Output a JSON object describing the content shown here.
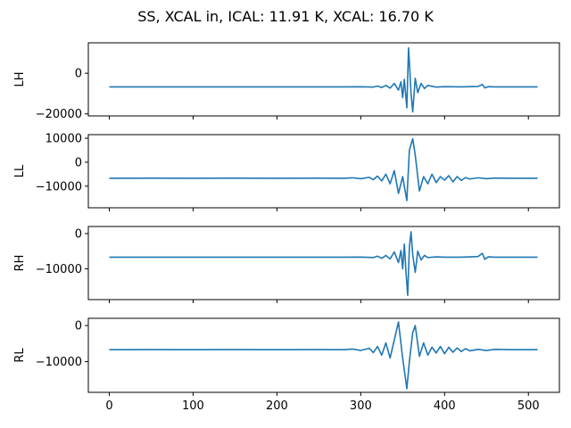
{
  "figure": {
    "title": "SS, XCAL in, ICAL: 11.91 K, XCAL: 16.70 K"
  },
  "chart_data": [
    {
      "type": "line",
      "ylabel": "LH",
      "xlim": [
        -25,
        537
      ],
      "ylim": [
        -21000,
        15000
      ],
      "yticks": [
        -20000,
        0
      ],
      "ytick_labels": [
        "−20000",
        "0"
      ],
      "xticks": [
        0,
        100,
        200,
        300,
        400,
        500
      ],
      "xtick_labels": [
        "",
        "",
        "",
        "",
        "",
        ""
      ],
      "series": [
        {
          "color": "#1f77b4",
          "x": [
            0,
            100,
            200,
            280,
            300,
            315,
            320,
            325,
            330,
            335,
            340,
            345,
            348,
            350,
            352,
            355,
            357,
            358,
            360,
            362,
            365,
            368,
            372,
            376,
            380,
            390,
            400,
            420,
            440,
            445,
            448,
            452,
            460,
            480,
            511
          ],
          "y": [
            -6700,
            -6700,
            -6700,
            -6700,
            -6650,
            -6800,
            -6300,
            -7000,
            -6000,
            -7300,
            -5000,
            -8300,
            -4200,
            -12000,
            -3000,
            -17000,
            12500,
            6000,
            -10000,
            -19000,
            -2500,
            -9500,
            -5000,
            -7500,
            -6000,
            -6800,
            -6600,
            -6700,
            -6500,
            -5500,
            -7200,
            -6600,
            -6700,
            -6700,
            -6700
          ]
        }
      ]
    },
    {
      "type": "line",
      "ylabel": "LL",
      "xlim": [
        -25,
        537
      ],
      "ylim": [
        -19000,
        11500
      ],
      "yticks": [
        -10000,
        0,
        10000
      ],
      "ytick_labels": [
        "−10000",
        "0",
        "10000"
      ],
      "xticks": [
        0,
        100,
        200,
        300,
        400,
        500
      ],
      "xtick_labels": [
        "",
        "",
        "",
        "",
        "",
        ""
      ],
      "series": [
        {
          "color": "#1f77b4",
          "x": [
            0,
            50,
            100,
            150,
            200,
            250,
            280,
            290,
            300,
            310,
            315,
            320,
            325,
            330,
            335,
            340,
            345,
            350,
            355,
            358,
            362,
            365,
            370,
            375,
            380,
            385,
            390,
            395,
            400,
            405,
            410,
            415,
            420,
            425,
            430,
            440,
            450,
            460,
            480,
            511
          ],
          "y": [
            -6700,
            -6650,
            -6700,
            -6650,
            -6700,
            -6650,
            -6700,
            -6500,
            -6900,
            -6300,
            -7300,
            -5800,
            -7800,
            -5000,
            -9000,
            -3500,
            -13000,
            -6000,
            -16000,
            5000,
            9800,
            3000,
            -12000,
            -6000,
            -9000,
            -5000,
            -8500,
            -6000,
            -7500,
            -5600,
            -8200,
            -6000,
            -7600,
            -6400,
            -7000,
            -6500,
            -6900,
            -6600,
            -6700,
            -6700
          ]
        }
      ]
    },
    {
      "type": "line",
      "ylabel": "RH",
      "xlim": [
        -25,
        537
      ],
      "ylim": [
        -18700,
        2000
      ],
      "yticks": [
        -10000,
        0
      ],
      "ytick_labels": [
        "−10000",
        "0"
      ],
      "xticks": [
        0,
        100,
        200,
        300,
        400,
        500
      ],
      "xtick_labels": [
        "",
        "",
        "",
        "",
        "",
        ""
      ],
      "series": [
        {
          "color": "#1f77b4",
          "x": [
            0,
            100,
            200,
            280,
            300,
            315,
            320,
            325,
            330,
            335,
            340,
            345,
            348,
            350,
            352,
            354,
            356,
            358,
            360,
            362,
            365,
            368,
            372,
            376,
            380,
            390,
            400,
            420,
            440,
            445,
            448,
            452,
            460,
            480,
            511
          ],
          "y": [
            -6700,
            -6700,
            -6700,
            -6700,
            -6650,
            -6800,
            -6400,
            -7000,
            -6200,
            -7200,
            -5200,
            -8200,
            -4800,
            -10000,
            -3000,
            -11000,
            -17500,
            -4000,
            500,
            -6000,
            -11000,
            -5000,
            -7500,
            -6200,
            -6800,
            -6600,
            -6700,
            -6700,
            -6500,
            -5600,
            -7300,
            -6600,
            -6700,
            -6700,
            -6700
          ]
        }
      ]
    },
    {
      "type": "line",
      "ylabel": "RL",
      "xlim": [
        -25,
        537
      ],
      "ylim": [
        -18500,
        2000
      ],
      "yticks": [
        -10000,
        0
      ],
      "ytick_labels": [
        "−10000",
        "0"
      ],
      "xticks": [
        0,
        100,
        200,
        300,
        400,
        500
      ],
      "xtick_labels": [
        "0",
        "100",
        "200",
        "300",
        "400",
        "500"
      ],
      "series": [
        {
          "color": "#1f77b4",
          "x": [
            0,
            50,
            100,
            150,
            200,
            250,
            280,
            290,
            300,
            310,
            315,
            320,
            325,
            330,
            335,
            340,
            345,
            350,
            355,
            358,
            362,
            365,
            370,
            375,
            380,
            385,
            390,
            395,
            400,
            405,
            410,
            415,
            420,
            425,
            430,
            440,
            450,
            460,
            480,
            511
          ],
          "y": [
            -6700,
            -6650,
            -6700,
            -6650,
            -6700,
            -6650,
            -6700,
            -6500,
            -6900,
            -6300,
            -7500,
            -5800,
            -8200,
            -4800,
            -9000,
            -4000,
            1000,
            -9000,
            -17500,
            -10000,
            -2000,
            0,
            -8500,
            -4800,
            -8200,
            -6000,
            -7600,
            -5800,
            -7800,
            -6000,
            -7400,
            -6200,
            -7200,
            -6400,
            -7000,
            -6600,
            -6900,
            -6600,
            -6700,
            -6700
          ]
        }
      ]
    }
  ]
}
